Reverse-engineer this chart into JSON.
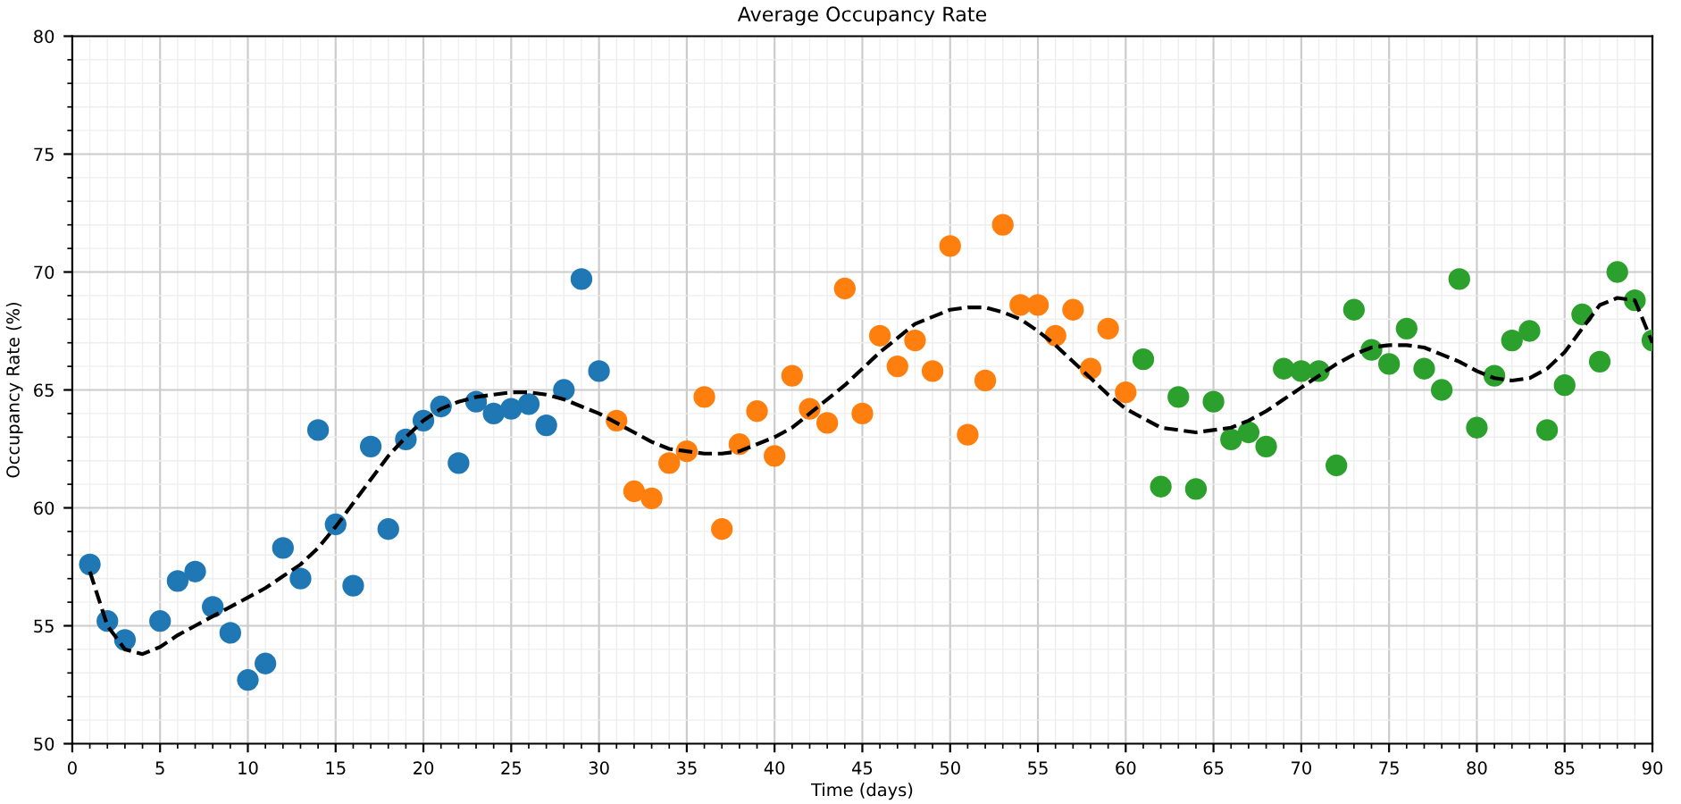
{
  "chart_data": {
    "type": "scatter",
    "title": "Average Occupancy Rate",
    "xlabel": "Time (days)",
    "ylabel": "Occupancy Rate (%)",
    "xlim": [
      0,
      90
    ],
    "xticks": [
      0,
      5,
      10,
      15,
      20,
      25,
      30,
      35,
      40,
      45,
      50,
      55,
      60,
      65,
      70,
      75,
      80,
      85,
      90
    ],
    "ylim": [
      50,
      80
    ],
    "yticks": [
      50,
      55,
      60,
      65,
      70,
      75,
      80
    ],
    "grid": true,
    "marker": "circle",
    "series": [
      {
        "color": "#1f77b4",
        "x": [
          1,
          2,
          3,
          5,
          6,
          7,
          8,
          9,
          10,
          11,
          12,
          13,
          14,
          15,
          16,
          17,
          18,
          19,
          20,
          21,
          22,
          23,
          24,
          25,
          26,
          27,
          28,
          29,
          30
        ],
        "values": [
          57.6,
          55.2,
          54.4,
          55.2,
          56.9,
          57.3,
          55.8,
          54.7,
          52.7,
          53.4,
          58.3,
          57.0,
          63.3,
          59.3,
          56.7,
          62.6,
          59.1,
          62.9,
          63.7,
          64.3,
          61.9,
          64.5,
          64.0,
          64.2,
          64.4,
          63.5,
          65.0,
          69.7,
          65.8
        ]
      },
      {
        "color": "#ff7f0e",
        "x": [
          31,
          32,
          33,
          34,
          35,
          36,
          37,
          38,
          39,
          40,
          41,
          42,
          43,
          44,
          45,
          46,
          47,
          48,
          49,
          50,
          51,
          52,
          53,
          54,
          55,
          56,
          57,
          58,
          59,
          60
        ],
        "values": [
          63.7,
          60.7,
          60.4,
          61.9,
          62.4,
          64.7,
          59.1,
          62.7,
          64.1,
          62.2,
          65.6,
          64.2,
          63.6,
          69.3,
          64.0,
          67.3,
          66.0,
          67.1,
          65.8,
          71.1,
          63.1,
          65.4,
          72.0,
          68.6,
          68.6,
          67.3,
          68.4,
          65.9,
          67.6,
          64.9
        ]
      },
      {
        "color": "#2ca02c",
        "x": [
          61,
          62,
          63,
          64,
          65,
          66,
          67,
          68,
          69,
          70,
          71,
          72,
          73,
          74,
          75,
          76,
          77,
          78,
          79,
          80,
          81,
          82,
          83,
          84,
          85,
          86,
          87,
          88,
          89,
          90
        ],
        "values": [
          66.3,
          60.9,
          64.7,
          60.8,
          64.5,
          62.9,
          63.2,
          62.6,
          65.9,
          65.8,
          65.8,
          61.8,
          68.4,
          66.7,
          66.1,
          67.6,
          65.9,
          65.0,
          69.7,
          63.4,
          65.6,
          67.1,
          67.5,
          63.3,
          65.2,
          68.2,
          66.2,
          70.0,
          68.8,
          67.1
        ]
      },
      {
        "type": "line",
        "color": "#000000",
        "line_style": "dashed",
        "marker": "none",
        "x": [
          1,
          2,
          3,
          4,
          5,
          6,
          7,
          8,
          9,
          10,
          11,
          12,
          13,
          14,
          15,
          16,
          17,
          18,
          19,
          20,
          21,
          22,
          23,
          24,
          25,
          26,
          27,
          28,
          29,
          30,
          31,
          32,
          33,
          34,
          35,
          36,
          37,
          38,
          39,
          40,
          41,
          42,
          43,
          44,
          45,
          46,
          47,
          48,
          49,
          50,
          51,
          52,
          53,
          54,
          55,
          56,
          57,
          58,
          59,
          60,
          61,
          62,
          63,
          64,
          65,
          66,
          67,
          68,
          69,
          70,
          71,
          72,
          73,
          74,
          75,
          76,
          77,
          78,
          79,
          80,
          81,
          82,
          83,
          84,
          85,
          86,
          87,
          88,
          89,
          90
        ],
        "values": [
          57.3,
          55.0,
          54.0,
          53.8,
          54.1,
          54.6,
          55.0,
          55.4,
          55.8,
          56.2,
          56.6,
          57.1,
          57.6,
          58.3,
          59.2,
          60.2,
          61.2,
          62.2,
          63.0,
          63.7,
          64.2,
          64.5,
          64.7,
          64.8,
          64.9,
          64.9,
          64.8,
          64.6,
          64.3,
          64.0,
          63.6,
          63.2,
          62.8,
          62.5,
          62.4,
          62.3,
          62.3,
          62.4,
          62.7,
          63.0,
          63.4,
          64.0,
          64.6,
          65.2,
          65.9,
          66.6,
          67.2,
          67.8,
          68.1,
          68.4,
          68.5,
          68.5,
          68.3,
          68.0,
          67.5,
          66.9,
          66.2,
          65.5,
          64.8,
          64.2,
          63.8,
          63.4,
          63.3,
          63.2,
          63.3,
          63.4,
          63.7,
          64.1,
          64.6,
          65.1,
          65.6,
          66.1,
          66.5,
          66.8,
          66.9,
          66.9,
          66.8,
          66.5,
          66.2,
          65.8,
          65.5,
          65.4,
          65.5,
          65.9,
          66.6,
          67.6,
          68.6,
          68.9,
          68.8,
          67.0
        ]
      }
    ]
  }
}
